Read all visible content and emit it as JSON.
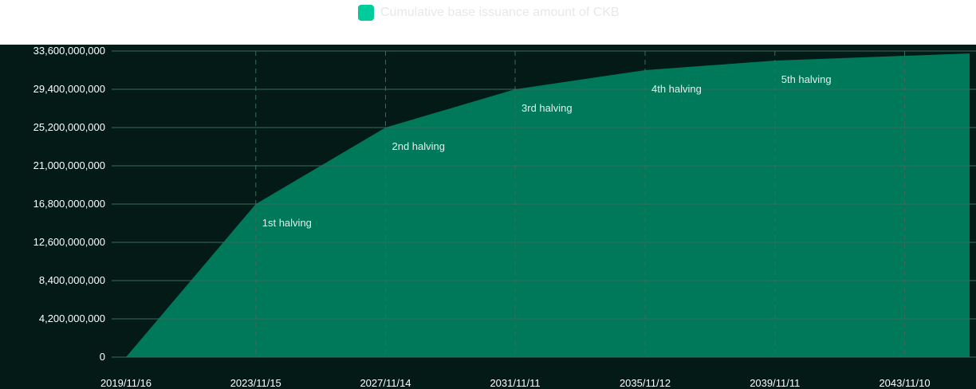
{
  "legend": {
    "label": "Cumulative base issuance amount of CKB"
  },
  "colors": {
    "background": "#031a16",
    "area": "#00785a",
    "grid": "#3b6a5e",
    "legend_swatch": "#00cc9b"
  },
  "chart_data": {
    "type": "area",
    "series": [
      {
        "name": "Cumulative base issuance amount of CKB",
        "x": [
          "2019/11/16",
          "2023/11/15",
          "2027/11/14",
          "2031/11/11",
          "2035/11/12",
          "2039/11/11",
          "2043/11/10",
          "2045/11/10"
        ],
        "values": [
          0,
          16800000000,
          25200000000,
          29400000000,
          31500000000,
          32550000000,
          33075000000,
          33337500000
        ]
      }
    ],
    "ylim": [
      0,
      33600000000
    ],
    "ytick_labels": [
      "0",
      "4,200,000,000",
      "8,400,000,000",
      "12,600,000,000",
      "16,800,000,000",
      "21,000,000,000",
      "25,200,000,000",
      "29,400,000,000",
      "33,600,000,000"
    ],
    "xtick_labels": [
      "2019/11/16",
      "2023/11/15",
      "2027/11/14",
      "2031/11/11",
      "2035/11/12",
      "2039/11/11",
      "2043/11/10"
    ],
    "annotations": [
      {
        "label": "1st halving",
        "x": "2023/11/15",
        "y": 16800000000
      },
      {
        "label": "2nd halving",
        "x": "2027/11/14",
        "y": 25200000000
      },
      {
        "label": "3rd halving",
        "x": "2031/11/11",
        "y": 29400000000
      },
      {
        "label": "4th halving",
        "x": "2035/11/12",
        "y": 31500000000
      },
      {
        "label": "5th halving",
        "x": "2039/11/11",
        "y": 32550000000
      }
    ],
    "grid": true,
    "legend_position": "top"
  }
}
